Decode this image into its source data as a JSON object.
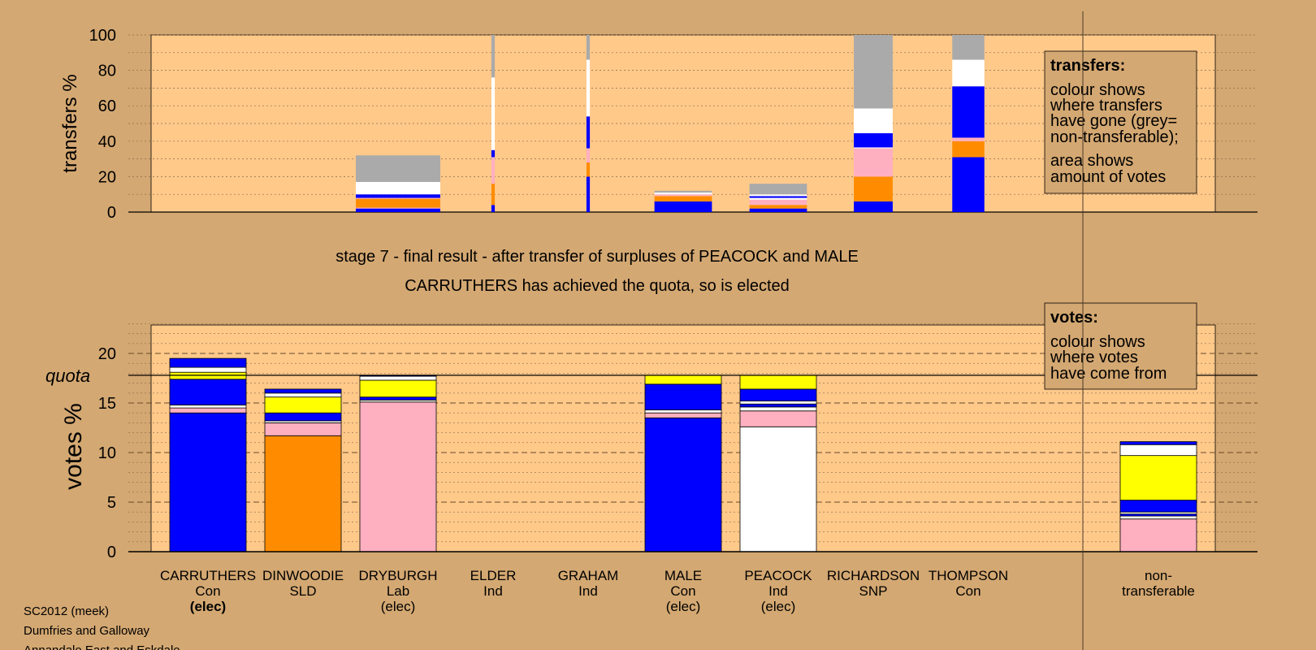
{
  "colors": {
    "background": "#d4a872",
    "plot_bg": "#ffc98a",
    "box_bg": "#d4a872",
    "Con": "#0000ff",
    "SLD": "#ff8c00",
    "Lab": "#ffb0c0",
    "Ind": "#ffffff",
    "SNP": "#ffff00",
    "nontransferable": "#aaaaaa"
  },
  "captions": {
    "stage_line": "stage 7 - final result - after transfer of surpluses of PEACOCK and MALE",
    "status_line": "CARRUTHERS has achieved the quota, so is elected"
  },
  "footer": {
    "line1": "SC2012 (meek)",
    "line2": "Dumfries and Galloway",
    "line3": "Annandale East and Eskdale"
  },
  "legend_transfers": {
    "title": "transfers:",
    "text": [
      "colour shows",
      "where transfers",
      "have gone (grey=",
      "non-transferable);",
      "area shows",
      "amount of votes"
    ]
  },
  "legend_votes": {
    "title": "votes:",
    "text": [
      "colour shows",
      "where votes",
      "have come from"
    ]
  },
  "chart_data": [
    {
      "type": "bar",
      "ylabel": "transfers %",
      "ylim": [
        0,
        100
      ],
      "yticks": [
        0,
        20,
        40,
        60,
        80,
        100
      ],
      "grid": true,
      "categories": [
        "DRYBURGH",
        "ELDER",
        "GRAHAM",
        "MALE",
        "PEACOCK",
        "RICHARDSON",
        "THOMPSON"
      ],
      "bar_width_share": [
        1.0,
        0.04,
        0.04,
        0.68,
        0.68,
        0.46,
        0.38
      ],
      "stacks": [
        [
          {
            "party": "Con",
            "value": 2
          },
          {
            "party": "Lab",
            "value": 0.5
          },
          {
            "party": "SLD",
            "value": 5
          },
          {
            "party": "Lab",
            "value": 0.5
          },
          {
            "party": "Con",
            "value": 2
          },
          {
            "party": "Ind",
            "value": 7
          },
          {
            "party": "nontransferable",
            "value": 15
          }
        ],
        [
          {
            "party": "Con",
            "value": 4
          },
          {
            "party": "SLD",
            "value": 12
          },
          {
            "party": "Lab",
            "value": 15
          },
          {
            "party": "Con",
            "value": 4
          },
          {
            "party": "Ind",
            "value": 41
          },
          {
            "party": "nontransferable",
            "value": 24
          }
        ],
        [
          {
            "party": "Con",
            "value": 20
          },
          {
            "party": "SLD",
            "value": 8
          },
          {
            "party": "Lab",
            "value": 8
          },
          {
            "party": "Con",
            "value": 18
          },
          {
            "party": "Ind",
            "value": 32
          },
          {
            "party": "nontransferable",
            "value": 14
          }
        ],
        [
          {
            "party": "Con",
            "value": 6
          },
          {
            "party": "SLD",
            "value": 3
          },
          {
            "party": "Lab",
            "value": 1
          },
          {
            "party": "Ind",
            "value": 1
          },
          {
            "party": "nontransferable",
            "value": 1
          }
        ],
        [
          {
            "party": "Con",
            "value": 2
          },
          {
            "party": "SLD",
            "value": 2
          },
          {
            "party": "Lab",
            "value": 3
          },
          {
            "party": "Ind",
            "value": 1
          },
          {
            "party": "Con",
            "value": 1
          },
          {
            "party": "Ind",
            "value": 1
          },
          {
            "party": "nontransferable",
            "value": 6
          }
        ],
        [
          {
            "party": "Con",
            "value": 6
          },
          {
            "party": "SLD",
            "value": 14
          },
          {
            "party": "Lab",
            "value": 16
          },
          {
            "party": "Ind",
            "value": 0.5
          },
          {
            "party": "Con",
            "value": 8
          },
          {
            "party": "Ind",
            "value": 14
          },
          {
            "party": "nontransferable",
            "value": 41.5
          }
        ],
        [
          {
            "party": "Con",
            "value": 31
          },
          {
            "party": "SLD",
            "value": 9
          },
          {
            "party": "Lab",
            "value": 2
          },
          {
            "party": "Con",
            "value": 29
          },
          {
            "party": "Ind",
            "value": 15
          },
          {
            "party": "nontransferable",
            "value": 14
          }
        ]
      ]
    },
    {
      "type": "bar",
      "ylabel": "votes %",
      "ylim": [
        0,
        23
      ],
      "yticks": [
        0,
        5,
        10,
        15,
        20
      ],
      "quota": 17.8,
      "quota_label": "quota",
      "grid": true,
      "candidates": [
        {
          "name": "CARRUTHERS",
          "party": "Con",
          "status": "(elec)",
          "status_bold": true
        },
        {
          "name": "DINWOODIE",
          "party": "SLD",
          "status": "",
          "status_bold": false
        },
        {
          "name": "DRYBURGH",
          "party": "Lab",
          "status": "(elec)",
          "status_bold": false
        },
        {
          "name": "ELDER",
          "party": "Ind",
          "status": "",
          "status_bold": false
        },
        {
          "name": "GRAHAM",
          "party": "Ind",
          "status": "",
          "status_bold": false
        },
        {
          "name": "MALE",
          "party": "Con",
          "status": "(elec)",
          "status_bold": false
        },
        {
          "name": "PEACOCK",
          "party": "Ind",
          "status": "(elec)",
          "status_bold": false
        },
        {
          "name": "RICHARDSON",
          "party": "SNP",
          "status": "",
          "status_bold": false
        },
        {
          "name": "THOMPSON",
          "party": "Con",
          "status": "",
          "status_bold": false
        },
        {
          "name": "non-",
          "party": "transferable",
          "status": "",
          "status_bold": false
        }
      ],
      "stacks": [
        [
          {
            "party": "Con",
            "value": 14.0
          },
          {
            "party": "Lab",
            "value": 0.5
          },
          {
            "party": "Ind",
            "value": 0.3
          },
          {
            "party": "Con",
            "value": 2.6
          },
          {
            "party": "SNP",
            "value": 0.7
          },
          {
            "party": "Ind",
            "value": 0.5
          },
          {
            "party": "Con",
            "value": 0.9
          }
        ],
        [
          {
            "party": "SLD",
            "value": 11.7
          },
          {
            "party": "Lab",
            "value": 1.3
          },
          {
            "party": "Ind",
            "value": 0.2
          },
          {
            "party": "Con",
            "value": 0.8
          },
          {
            "party": "SNP",
            "value": 1.6
          },
          {
            "party": "Ind",
            "value": 0.4
          },
          {
            "party": "Con",
            "value": 0.4
          }
        ],
        [
          {
            "party": "Lab",
            "value": 15.1
          },
          {
            "party": "Ind",
            "value": 0.2
          },
          {
            "party": "Con",
            "value": 0.3
          },
          {
            "party": "SNP",
            "value": 1.7
          },
          {
            "party": "Ind",
            "value": 0.4
          },
          {
            "party": "Con",
            "value": 0.1
          }
        ],
        [],
        [],
        [
          {
            "party": "Con",
            "value": 13.5
          },
          {
            "party": "Lab",
            "value": 0.5
          },
          {
            "party": "Ind",
            "value": 0.3
          },
          {
            "party": "Con",
            "value": 2.6
          },
          {
            "party": "SNP",
            "value": 0.9
          }
        ],
        [
          {
            "party": "Ind",
            "value": 12.6
          },
          {
            "party": "Lab",
            "value": 1.6
          },
          {
            "party": "Ind",
            "value": 0.4
          },
          {
            "party": "Con",
            "value": 0.3
          },
          {
            "party": "Ind",
            "value": 0.3
          },
          {
            "party": "Con",
            "value": 1.2
          },
          {
            "party": "SNP",
            "value": 1.4
          }
        ],
        [],
        [],
        [
          {
            "party": "Lab",
            "value": 3.3
          },
          {
            "party": "Ind",
            "value": 0.3
          },
          {
            "party": "Con",
            "value": 0.2
          },
          {
            "party": "Ind",
            "value": 0.2
          },
          {
            "party": "Con",
            "value": 1.2
          },
          {
            "party": "SNP",
            "value": 4.5
          },
          {
            "party": "Ind",
            "value": 1.1
          },
          {
            "party": "Con",
            "value": 0.3
          }
        ]
      ]
    }
  ]
}
